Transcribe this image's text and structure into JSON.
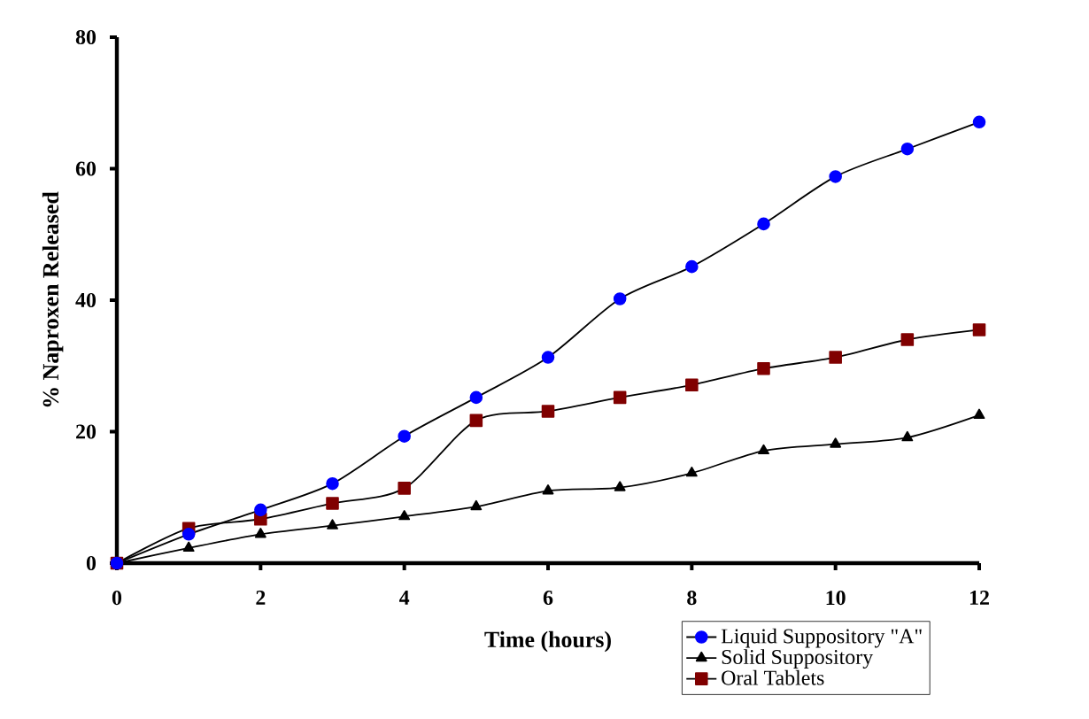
{
  "chart_data": {
    "type": "line",
    "xlabel": "Time (hours)",
    "ylabel": "% Naproxen Released",
    "x": [
      0,
      1,
      2,
      3,
      4,
      5,
      6,
      7,
      8,
      9,
      10,
      11,
      12
    ],
    "series": [
      {
        "name": "Liquid Suppository \"A\"",
        "color": "#0000ff",
        "marker": "circle",
        "values": [
          0,
          4.4,
          8.1,
          12.1,
          19.3,
          25.2,
          31.3,
          40.2,
          45.1,
          51.6,
          58.8,
          63,
          67.1
        ]
      },
      {
        "name": "Solid Suppository",
        "color": "#000000",
        "marker": "triangle",
        "values": [
          0,
          2.3,
          4.4,
          5.7,
          7.1,
          8.6,
          11.0,
          11.5,
          13.7,
          17.1,
          18.1,
          19.1,
          22.5
        ]
      },
      {
        "name": "Oral Tablets",
        "color": "#800000",
        "marker": "square",
        "values": [
          0,
          5.3,
          6.7,
          9.1,
          11.4,
          21.7,
          23.1,
          25.2,
          27.1,
          29.6,
          31.3,
          34.0,
          35.5
        ]
      }
    ],
    "xlim": [
      0,
      12
    ],
    "xticks": [
      0,
      2,
      4,
      6,
      8,
      10,
      12
    ],
    "ylim": [
      0,
      80
    ],
    "yticks": [
      0,
      20,
      40,
      60,
      80
    ],
    "grid": false,
    "legend": "bottom right",
    "line_style": "solid"
  }
}
